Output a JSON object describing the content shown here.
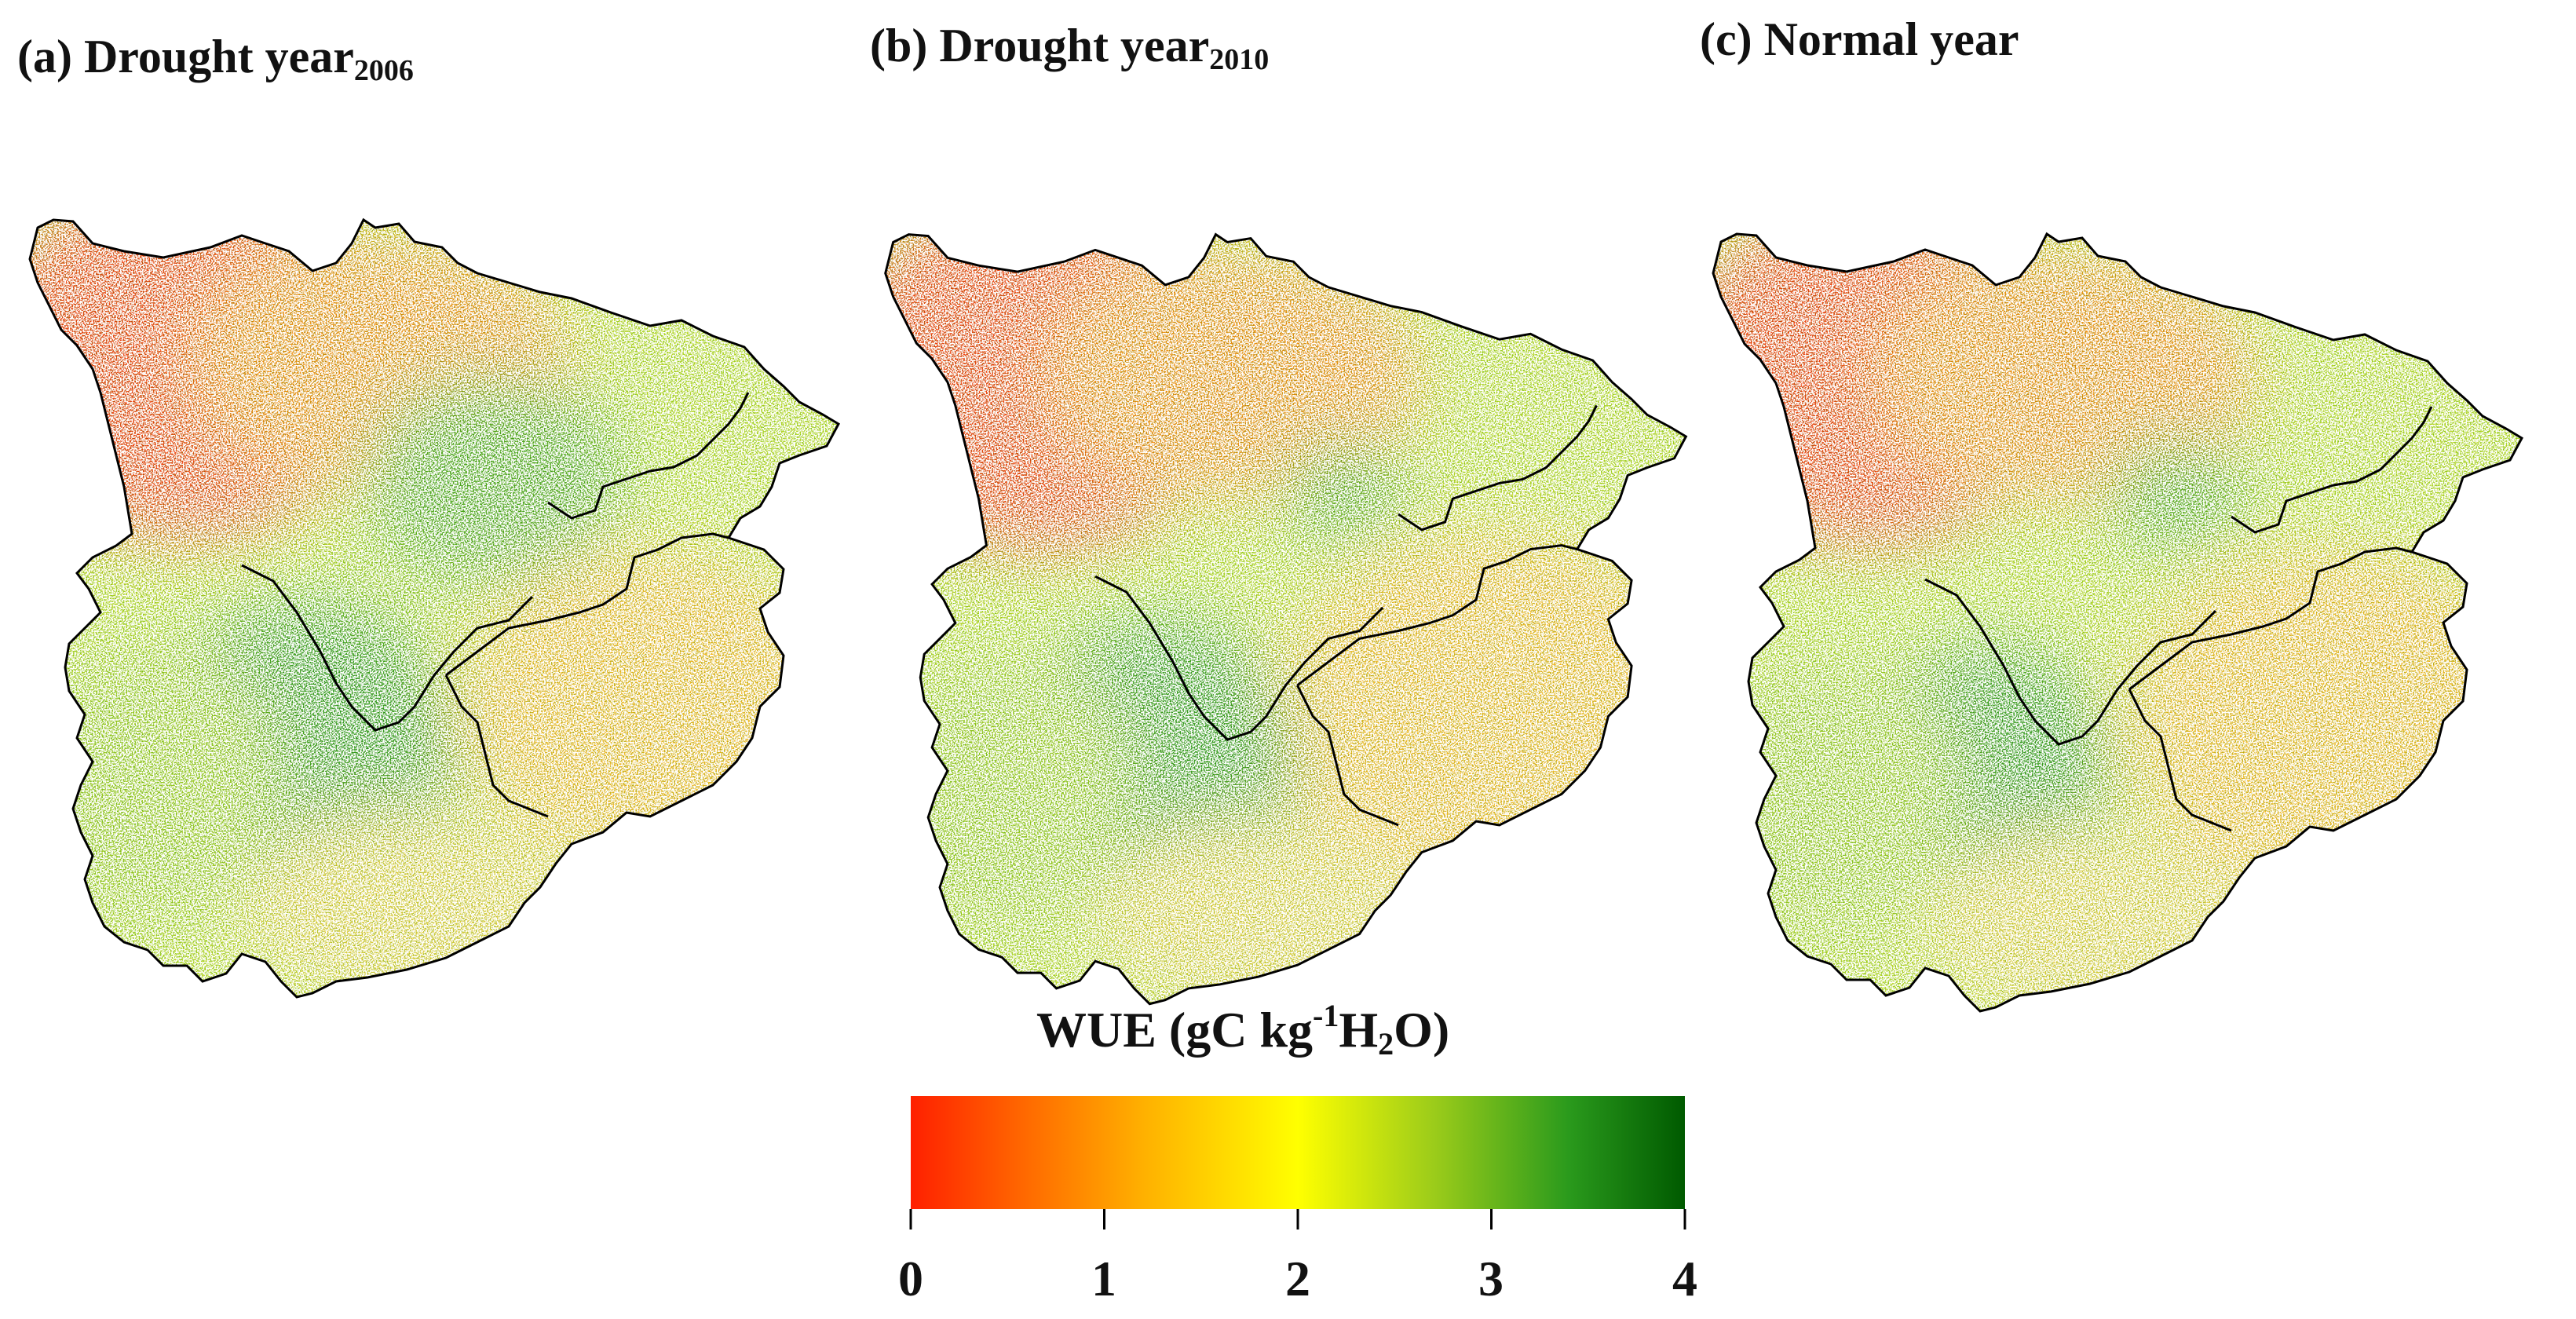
{
  "panels": [
    {
      "letter": "(a)",
      "title": "Drought year",
      "subscript": "2006",
      "scenario": "drought",
      "pattern": {
        "red": 1.0,
        "green_sw": 1.0,
        "green_ne": 1.0,
        "orange_se": 1.0
      }
    },
    {
      "letter": "(b)",
      "title": "Drought year",
      "subscript": "2010",
      "scenario": "drought",
      "pattern": {
        "red": 1.0,
        "green_sw": 0.95,
        "green_ne": 0.5,
        "orange_se": 1.2
      }
    },
    {
      "letter": "(c)",
      "title": "Normal year",
      "subscript": "",
      "scenario": "normal",
      "pattern": {
        "red": 0.95,
        "green_sw": 0.8,
        "green_ne": 0.55,
        "orange_se": 1.1
      }
    }
  ],
  "colorbar": {
    "title": {
      "main": "WUE  (gC kg",
      "sup": "-1",
      "mid": "H",
      "sub": "2",
      "end": "O)"
    },
    "ticks": [
      "0",
      "1",
      "2",
      "3",
      "4"
    ],
    "range": [
      0,
      4
    ],
    "stops": [
      {
        "v": 0.0,
        "color": "#ff2000"
      },
      {
        "v": 0.6,
        "color": "#ff6a00"
      },
      {
        "v": 1.2,
        "color": "#ffb000"
      },
      {
        "v": 2.0,
        "color": "#ffff00"
      },
      {
        "v": 2.7,
        "color": "#9ccc1a"
      },
      {
        "v": 3.4,
        "color": "#2a9a1c"
      },
      {
        "v": 4.0,
        "color": "#005a00"
      }
    ]
  },
  "colors": {
    "boundary": "#000000",
    "background": "#ffffff"
  }
}
